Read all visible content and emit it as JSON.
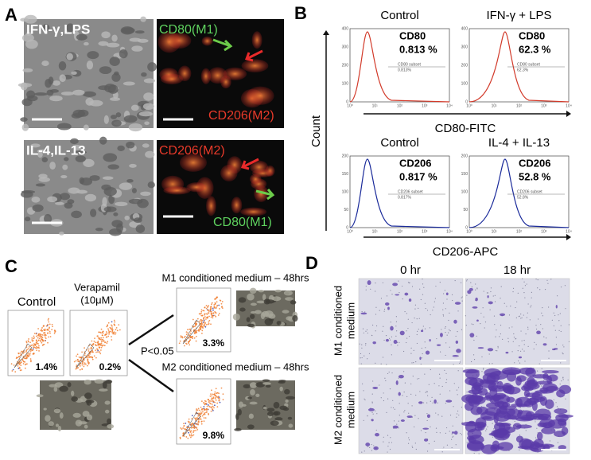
{
  "panel_a": {
    "label": "A",
    "row1": {
      "treatment": "IFN-γ,LPS",
      "stain_top": "CD80(M1)",
      "stain_bottom": "CD206(M2)"
    },
    "row2": {
      "treatment": "IL-4,IL-13",
      "stain_top": "CD206(M2)",
      "stain_bottom": "CD80(M1)"
    }
  },
  "panel_b": {
    "label": "B",
    "y_axis_label": "Count",
    "rows": [
      {
        "x_axis_label": "CD80-FITC",
        "yticks": [
          "0",
          "100",
          "200",
          "300",
          "400"
        ],
        "plots": [
          {
            "title": "Control",
            "marker": "CD80",
            "percent": "0.813 %",
            "gate_name": "CD80 subset",
            "gate_value": "0.813%"
          },
          {
            "title": "IFN-γ + LPS",
            "marker": "CD80",
            "percent": "62.3 %",
            "gate_name": "CD80 subset",
            "gate_value": "62.3%"
          }
        ]
      },
      {
        "x_axis_label": "CD206-APC",
        "yticks": [
          "0",
          "50",
          "100",
          "150",
          "200"
        ],
        "plots": [
          {
            "title": "Control",
            "marker": "CD206",
            "percent": "0.817 %",
            "gate_name": "CD206 subset",
            "gate_value": "0.817%"
          },
          {
            "title": "IL-4 + IL-13",
            "marker": "CD206",
            "percent": "52.8 %",
            "gate_name": "CD206 subset",
            "gate_value": "52.8%"
          }
        ]
      }
    ],
    "xticks": [
      "10⁰",
      "10¹",
      "10²",
      "10³",
      "10⁴"
    ]
  },
  "panel_c": {
    "label": "C",
    "control": {
      "title": "Control",
      "percent": "1.4%"
    },
    "verapamil": {
      "title": [
        "Verapamil",
        "(10μM)"
      ],
      "percent": "0.2%"
    },
    "significance": "P<0.05",
    "m1": {
      "title": "M1 conditioned  medium – 48hrs",
      "percent": "3.3%"
    },
    "m2": {
      "title": "M2 conditioned  medium – 48hrs",
      "percent": "9.8%"
    }
  },
  "panel_d": {
    "label": "D",
    "columns": [
      "0 hr",
      "18 hr"
    ],
    "rows": [
      [
        "M1 conditioned",
        "medium"
      ],
      [
        "M2 conditioned",
        "medium"
      ]
    ]
  }
}
